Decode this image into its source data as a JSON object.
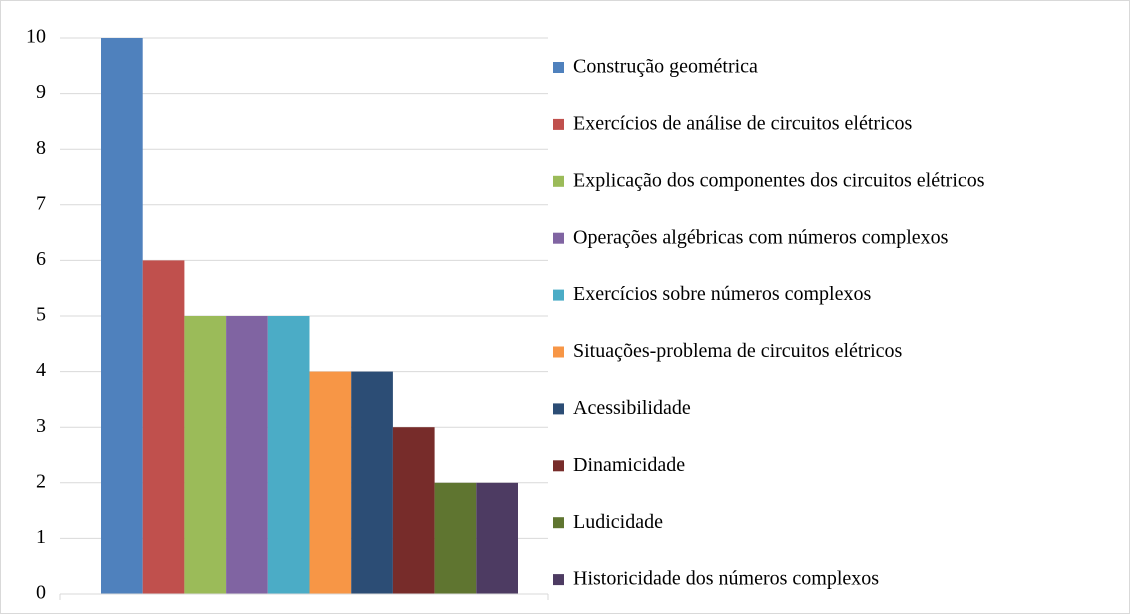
{
  "chart_data": {
    "type": "bar",
    "series": [
      {
        "name": "Construção geométrica",
        "color": "#4f81bd",
        "values": [
          10
        ]
      },
      {
        "name": "Exercícios de análise de circuitos elétricos",
        "color": "#c0504d",
        "values": [
          6
        ]
      },
      {
        "name": "Explicação dos componentes dos circuitos elétricos",
        "color": "#9bbb59",
        "values": [
          5
        ]
      },
      {
        "name": "Operações algébricas com números complexos",
        "color": "#8064a2",
        "values": [
          5
        ]
      },
      {
        "name": "Exercícios sobre números complexos",
        "color": "#4bacc6",
        "values": [
          5
        ]
      },
      {
        "name": "Situações-problema de circuitos elétricos",
        "color": "#f79646",
        "values": [
          4
        ]
      },
      {
        "name": "Acessibilidade",
        "color": "#2c4d75",
        "values": [
          4
        ]
      },
      {
        "name": "Dinamicidade",
        "color": "#772c2a",
        "values": [
          3
        ]
      },
      {
        "name": "Ludicidade",
        "color": "#5f7530",
        "values": [
          2
        ]
      },
      {
        "name": "Historicidade dos números complexos",
        "color": "#4d3b62",
        "values": [
          2
        ]
      }
    ],
    "ylim": [
      0,
      10
    ],
    "yticks": [
      0,
      1,
      2,
      3,
      4,
      5,
      6,
      7,
      8,
      9,
      10
    ],
    "grid": true,
    "legend": "right"
  }
}
